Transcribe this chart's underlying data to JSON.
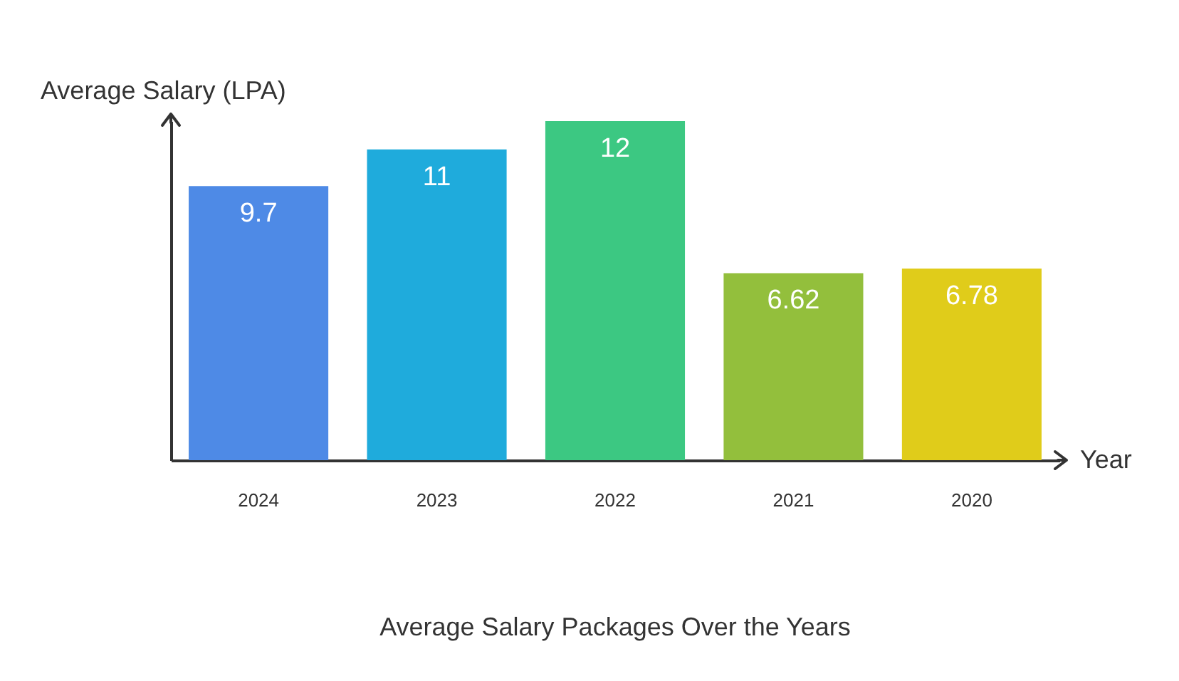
{
  "chart_data": {
    "type": "bar",
    "title": "Average Salary Packages Over the Years",
    "xlabel": "Year",
    "ylabel": "Average Salary (LPA)",
    "categories": [
      "2024",
      "2023",
      "2022",
      "2021",
      "2020"
    ],
    "values": [
      9.7,
      11,
      12,
      6.62,
      6.78
    ],
    "colors": [
      "#4e8ae6",
      "#1fabdc",
      "#3cc882",
      "#93bf3c",
      "#e0cc1a"
    ],
    "data_labels": true
  }
}
